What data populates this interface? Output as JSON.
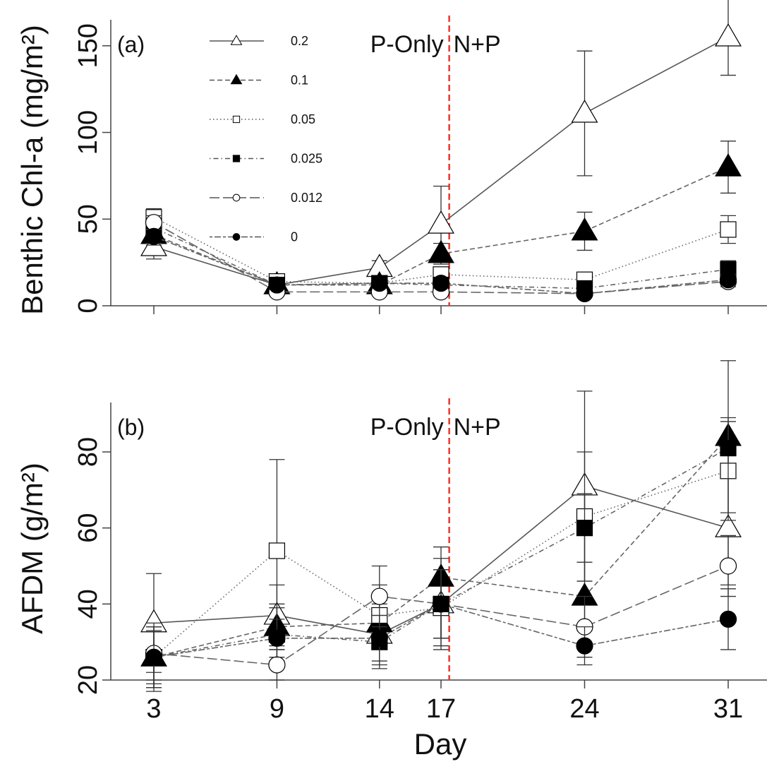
{
  "chart_data": [
    {
      "type": "line",
      "panel_label": "(a)",
      "ylabel": "Benthic Chl-a (mg/m²)",
      "xlabel": "",
      "x": [
        3,
        9,
        14,
        17,
        24,
        31
      ],
      "xlim": [
        3,
        31
      ],
      "ylim": [
        0,
        165
      ],
      "yticks": [
        0,
        50,
        100,
        150
      ],
      "grid": false,
      "legend_position": "top-left",
      "phase_split_day": 17.4,
      "phase_left": "P-Only",
      "phase_right": "N+P",
      "series": [
        {
          "name": "0.2",
          "marker": "triangle-open",
          "dash": "solid",
          "values": [
            34,
            12,
            22,
            47,
            111,
            155
          ],
          "err": [
            7,
            3,
            4,
            22,
            36,
            22
          ]
        },
        {
          "name": "0.1",
          "marker": "triangle-filled",
          "dash": "dashed",
          "values": [
            41,
            12,
            12,
            30,
            43,
            80
          ],
          "err": [
            6,
            2,
            3,
            6,
            11,
            15
          ]
        },
        {
          "name": "0.05",
          "marker": "square-open",
          "dash": "dotted",
          "values": [
            51,
            14,
            13,
            18,
            15,
            44
          ],
          "err": [
            5,
            3,
            2,
            4,
            3,
            8
          ]
        },
        {
          "name": "0.025",
          "marker": "square-filled",
          "dash": "dotdash",
          "values": [
            45,
            12,
            13,
            12,
            10,
            21
          ],
          "err": [
            5,
            2,
            2,
            3,
            2,
            5
          ]
        },
        {
          "name": "0.012",
          "marker": "circle-open",
          "dash": "longdash",
          "values": [
            48,
            8,
            8,
            8,
            7,
            14
          ],
          "err": [
            4,
            2,
            2,
            2,
            2,
            3
          ]
        },
        {
          "name": "0",
          "marker": "circle-filled",
          "dash": "twodash",
          "values": [
            40,
            12,
            13,
            13,
            7,
            15
          ],
          "err": [
            4,
            2,
            2,
            2,
            2,
            3
          ]
        }
      ]
    },
    {
      "type": "line",
      "panel_label": "(b)",
      "ylabel": "AFDM (g/m²)",
      "xlabel": "Day",
      "x": [
        3,
        9,
        14,
        17,
        24,
        31
      ],
      "xlim": [
        3,
        31
      ],
      "ylim": [
        20,
        93
      ],
      "yticks": [
        20,
        40,
        60,
        80
      ],
      "grid": false,
      "phase_split_day": 17.4,
      "phase_left": "P-Only",
      "phase_right": "N+P",
      "series": [
        {
          "name": "0.2",
          "marker": "triangle-open",
          "dash": "solid",
          "values": [
            35,
            37,
            32,
            40,
            71,
            60
          ],
          "err": [
            13,
            8,
            8,
            12,
            25,
            15
          ]
        },
        {
          "name": "0.1",
          "marker": "triangle-filled",
          "dash": "dashed",
          "values": [
            26,
            34,
            35,
            47,
            42,
            84
          ],
          "err": [
            8,
            6,
            6,
            8,
            9,
            20
          ]
        },
        {
          "name": "0.05",
          "marker": "square-open",
          "dash": "dotted",
          "values": [
            26,
            54,
            37,
            39,
            63,
            75
          ],
          "err": [
            9,
            24,
            8,
            10,
            17,
            13
          ]
        },
        {
          "name": "0.025",
          "marker": "square-filled",
          "dash": "dotdash",
          "values": [
            26,
            32,
            30,
            40,
            60,
            81
          ],
          "err": [
            8,
            7,
            7,
            9,
            9,
            8
          ]
        },
        {
          "name": "0.012",
          "marker": "circle-open",
          "dash": "longdash",
          "values": [
            27,
            24,
            42,
            40,
            34,
            50
          ],
          "err": [
            7,
            4,
            8,
            9,
            8,
            8
          ]
        },
        {
          "name": "0",
          "marker": "circle-filled",
          "dash": "twodash",
          "values": [
            26,
            31,
            31,
            40,
            29,
            36
          ],
          "err": [
            7,
            5,
            6,
            9,
            5,
            8
          ]
        }
      ]
    }
  ]
}
